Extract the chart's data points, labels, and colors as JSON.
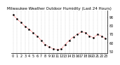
{
  "title": "Milwaukee Weather Outdoor Humidity (Last 24 Hours)",
  "x_values": [
    0,
    1,
    2,
    3,
    4,
    5,
    6,
    7,
    8,
    9,
    10,
    11,
    12,
    13,
    14,
    15,
    16,
    17,
    18,
    19,
    20,
    21,
    22,
    23
  ],
  "y_values": [
    93,
    88,
    84,
    79,
    76,
    72,
    68,
    63,
    58,
    55,
    53,
    52,
    53,
    58,
    63,
    67,
    70,
    73,
    72,
    68,
    66,
    70,
    68,
    65
  ],
  "line_color": "#ff0000",
  "bg_color": "#ffffff",
  "grid_color": "#999999",
  "ylim": [
    48,
    98
  ],
  "ytick_labels": [
    "90",
    "80",
    "70",
    "60",
    "50"
  ],
  "ytick_values": [
    90,
    80,
    70,
    60,
    50
  ],
  "title_fontsize": 4.0,
  "tick_fontsize": 3.5,
  "line_width": 0.6,
  "marker_size": 1.2,
  "dot_size": 1.8
}
